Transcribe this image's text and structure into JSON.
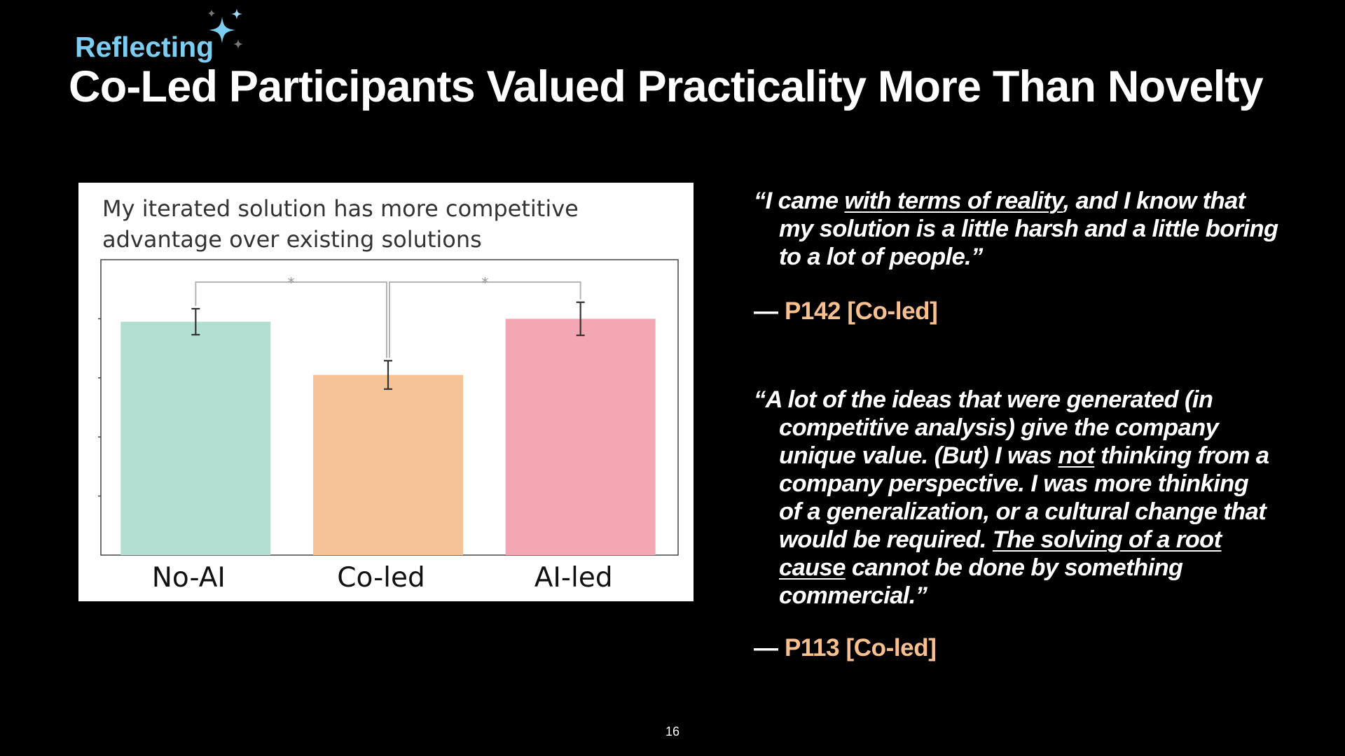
{
  "slide": {
    "section": "Reflecting",
    "title": "Co-Led Participants Valued Practicality More Than Novelty",
    "page_number": "16",
    "accent_color": "#7ccdf2",
    "attribution_color": "#f9c08f"
  },
  "chart_data": {
    "type": "bar",
    "title_lines": [
      "My iterated solution has more competitive",
      "advantage over existing solutions"
    ],
    "categories": [
      "No-AI",
      "Co-led",
      "AI-led"
    ],
    "values": [
      3.95,
      3.05,
      4.0
    ],
    "error": [
      0.22,
      0.24,
      0.28
    ],
    "colors": [
      "#b3ded2",
      "#f6c399",
      "#f3a7b3"
    ],
    "ylim": [
      0,
      5
    ],
    "xlabel": "",
    "ylabel": "",
    "significance": [
      {
        "from": "No-AI",
        "to": "Co-led",
        "label": "*"
      },
      {
        "from": "Co-led",
        "to": "AI-led",
        "label": "*"
      }
    ]
  },
  "quotes": [
    {
      "lines": [
        [
          {
            "text": "“I came "
          },
          {
            "text": "with terms of reality",
            "u": true
          },
          {
            "text": ", and I know that"
          }
        ],
        [
          {
            "text": "my solution is a little harsh and a little boring"
          }
        ],
        [
          {
            "text": "to a lot of people.”"
          }
        ]
      ],
      "dash": "—",
      "attribution": "P142 [Co-led]"
    },
    {
      "lines": [
        [
          {
            "text": "“A lot of the ideas that were generated (in"
          }
        ],
        [
          {
            "text": "competitive analysis) give the company"
          }
        ],
        [
          {
            "text": "unique value. (But) I was "
          },
          {
            "text": "not",
            "u": true
          },
          {
            "text": " thinking from a"
          }
        ],
        [
          {
            "text": "company perspective. I was more thinking"
          }
        ],
        [
          {
            "text": "of a generalization, or a cultural change that"
          }
        ],
        [
          {
            "text": "would be required.  "
          },
          {
            "text": "The solving of a root",
            "u": true
          }
        ],
        [
          {
            "text": "cause",
            "u": true
          },
          {
            "text": " cannot be done by something"
          }
        ],
        [
          {
            "text": "commercial.”"
          }
        ]
      ],
      "dash": "—",
      "attribution": "P113 [Co-led]"
    }
  ]
}
